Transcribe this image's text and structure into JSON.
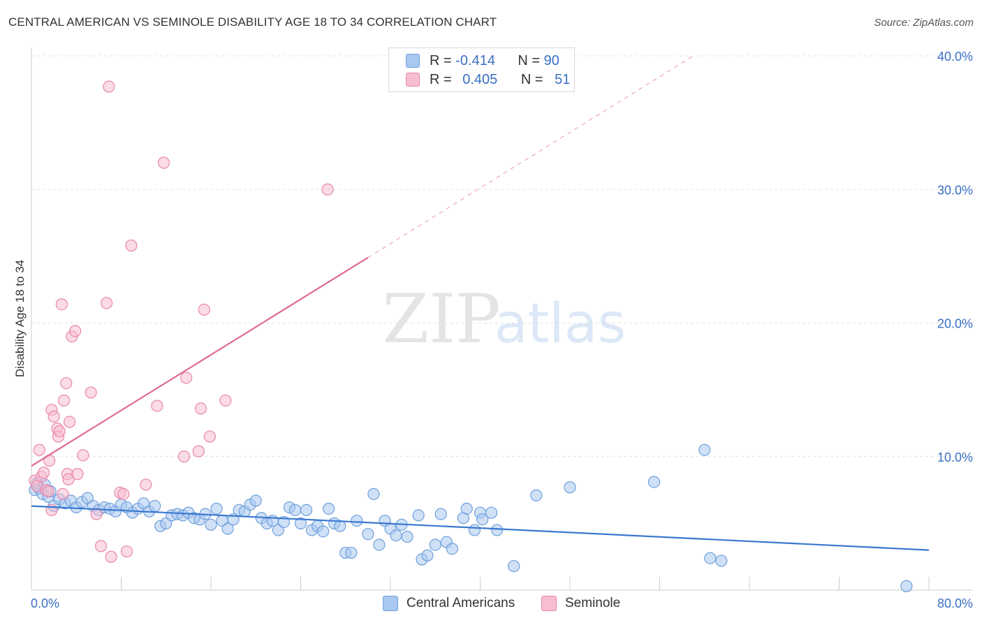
{
  "title": "CENTRAL AMERICAN VS SEMINOLE DISABILITY AGE 18 TO 34 CORRELATION CHART",
  "source": "Source: ZipAtlas.com",
  "watermark": {
    "zip": "ZIP",
    "atlas": "atlas"
  },
  "legend": {
    "rows": [
      {
        "r_label": "R =",
        "r_value": "-0.414",
        "n_label": "N =",
        "n_value": "90",
        "color": "#a9c8f0",
        "border": "#6f9fdc"
      },
      {
        "r_label": "R =",
        "r_value": "0.405",
        "n_label": "N =",
        "n_value": "51",
        "color": "#f7bdd0",
        "border": "#e887a8"
      }
    ]
  },
  "chart_data": {
    "type": "scatter",
    "title": "CENTRAL AMERICAN VS SEMINOLE DISABILITY AGE 18 TO 34 CORRELATION CHART",
    "xlabel": "",
    "ylabel": "Disability Age 18 to 34",
    "xlim": [
      0,
      80
    ],
    "ylim": [
      0,
      40
    ],
    "x_tick_labels": [
      "0.0%",
      "80.0%"
    ],
    "y_tick_labels": [
      "10.0%",
      "20.0%",
      "30.0%",
      "40.0%"
    ],
    "y_ticks": [
      10,
      20,
      30,
      40
    ],
    "grid": true,
    "legend_position": "top-center",
    "series": [
      {
        "name": "Central Americans",
        "color": "#6f9fdc",
        "fill": "#a9c8f0",
        "line_color": "#3a78d0",
        "trend": {
          "x": [
            0,
            80
          ],
          "y": [
            6.3,
            3.0
          ],
          "dashed_to": null
        },
        "points": [
          [
            0.3,
            7.5
          ],
          [
            0.5,
            8.0
          ],
          [
            0.7,
            7.6
          ],
          [
            1.0,
            7.2
          ],
          [
            1.2,
            7.9
          ],
          [
            1.5,
            7.0
          ],
          [
            1.7,
            7.4
          ],
          [
            2.0,
            6.3
          ],
          [
            2.5,
            6.8
          ],
          [
            3.0,
            6.5
          ],
          [
            3.5,
            6.7
          ],
          [
            4.0,
            6.2
          ],
          [
            4.5,
            6.6
          ],
          [
            5.0,
            6.9
          ],
          [
            5.5,
            6.3
          ],
          [
            6.0,
            6.0
          ],
          [
            6.5,
            6.2
          ],
          [
            7.0,
            6.1
          ],
          [
            7.5,
            5.9
          ],
          [
            8.0,
            6.4
          ],
          [
            8.5,
            6.2
          ],
          [
            9.0,
            5.8
          ],
          [
            9.5,
            6.1
          ],
          [
            10.0,
            6.5
          ],
          [
            10.5,
            5.9
          ],
          [
            11.0,
            6.3
          ],
          [
            11.5,
            4.8
          ],
          [
            12.0,
            5.0
          ],
          [
            12.5,
            5.6
          ],
          [
            13.0,
            5.7
          ],
          [
            13.5,
            5.6
          ],
          [
            14.0,
            5.8
          ],
          [
            14.5,
            5.4
          ],
          [
            15.0,
            5.3
          ],
          [
            15.5,
            5.7
          ],
          [
            16.0,
            4.9
          ],
          [
            16.5,
            6.1
          ],
          [
            17.0,
            5.2
          ],
          [
            17.5,
            4.6
          ],
          [
            18.0,
            5.3
          ],
          [
            18.5,
            6.0
          ],
          [
            19.0,
            5.9
          ],
          [
            19.5,
            6.4
          ],
          [
            20.0,
            6.7
          ],
          [
            20.5,
            5.4
          ],
          [
            21.0,
            5.0
          ],
          [
            21.5,
            5.2
          ],
          [
            22.0,
            4.5
          ],
          [
            22.5,
            5.1
          ],
          [
            23.0,
            6.2
          ],
          [
            23.5,
            6.0
          ],
          [
            24.0,
            5.0
          ],
          [
            24.5,
            6.0
          ],
          [
            25.0,
            4.5
          ],
          [
            25.5,
            4.8
          ],
          [
            26.0,
            4.4
          ],
          [
            26.5,
            6.1
          ],
          [
            27.0,
            5.0
          ],
          [
            27.5,
            4.8
          ],
          [
            28.0,
            2.8
          ],
          [
            28.5,
            2.8
          ],
          [
            29.0,
            5.2
          ],
          [
            30.0,
            4.2
          ],
          [
            30.5,
            7.2
          ],
          [
            31.0,
            3.4
          ],
          [
            31.5,
            5.2
          ],
          [
            32.0,
            4.6
          ],
          [
            32.5,
            4.1
          ],
          [
            33.0,
            4.9
          ],
          [
            33.5,
            4.0
          ],
          [
            34.5,
            5.6
          ],
          [
            34.8,
            2.3
          ],
          [
            35.3,
            2.6
          ],
          [
            36.0,
            3.4
          ],
          [
            36.5,
            5.7
          ],
          [
            37.0,
            3.6
          ],
          [
            37.5,
            3.1
          ],
          [
            38.5,
            5.4
          ],
          [
            38.8,
            6.1
          ],
          [
            39.5,
            4.5
          ],
          [
            40.0,
            5.8
          ],
          [
            40.2,
            5.3
          ],
          [
            41.0,
            5.8
          ],
          [
            41.5,
            4.5
          ],
          [
            43.0,
            1.8
          ],
          [
            45.0,
            7.1
          ],
          [
            48.0,
            7.7
          ],
          [
            55.5,
            8.1
          ],
          [
            60.0,
            10.5
          ],
          [
            60.5,
            2.4
          ],
          [
            61.5,
            2.2
          ],
          [
            78.0,
            0.3
          ]
        ]
      },
      {
        "name": "Seminole",
        "color": "#e887a8",
        "fill": "#f7bdd0",
        "line_color": "#e06890",
        "trend": {
          "x": [
            0,
            30
          ],
          "y": [
            9.3,
            24.9
          ],
          "dashed_to": [
            59,
            40
          ]
        },
        "points": [
          [
            0.3,
            8.2
          ],
          [
            0.5,
            7.8
          ],
          [
            0.7,
            10.5
          ],
          [
            0.9,
            8.5
          ],
          [
            1.1,
            8.8
          ],
          [
            1.3,
            7.5
          ],
          [
            1.5,
            7.4
          ],
          [
            1.6,
            9.7
          ],
          [
            1.8,
            6.0
          ],
          [
            1.8,
            13.5
          ],
          [
            2.0,
            13.0
          ],
          [
            2.3,
            12.1
          ],
          [
            2.4,
            11.5
          ],
          [
            2.5,
            11.9
          ],
          [
            2.7,
            21.4
          ],
          [
            2.8,
            7.2
          ],
          [
            2.9,
            14.2
          ],
          [
            3.1,
            15.5
          ],
          [
            3.2,
            8.7
          ],
          [
            3.3,
            8.3
          ],
          [
            3.4,
            12.6
          ],
          [
            3.6,
            19.0
          ],
          [
            3.9,
            19.4
          ],
          [
            4.1,
            8.7
          ],
          [
            4.6,
            10.1
          ],
          [
            5.3,
            14.8
          ],
          [
            5.8,
            5.7
          ],
          [
            6.2,
            3.3
          ],
          [
            6.7,
            21.5
          ],
          [
            6.9,
            37.7
          ],
          [
            7.1,
            2.5
          ],
          [
            7.9,
            7.3
          ],
          [
            8.2,
            7.2
          ],
          [
            8.5,
            2.9
          ],
          [
            8.9,
            25.8
          ],
          [
            10.2,
            7.9
          ],
          [
            11.2,
            13.8
          ],
          [
            11.8,
            32.0
          ],
          [
            13.6,
            10.0
          ],
          [
            13.8,
            15.9
          ],
          [
            14.9,
            10.4
          ],
          [
            15.1,
            13.6
          ],
          [
            15.4,
            21.0
          ],
          [
            15.9,
            11.5
          ],
          [
            17.3,
            14.2
          ],
          [
            26.4,
            30.0
          ]
        ]
      }
    ]
  },
  "bottom_legend": [
    {
      "label": "Central Americans",
      "color": "#a9c8f0",
      "border": "#6f9fdc"
    },
    {
      "label": "Seminole",
      "color": "#f7bdd0",
      "border": "#e887a8"
    }
  ]
}
